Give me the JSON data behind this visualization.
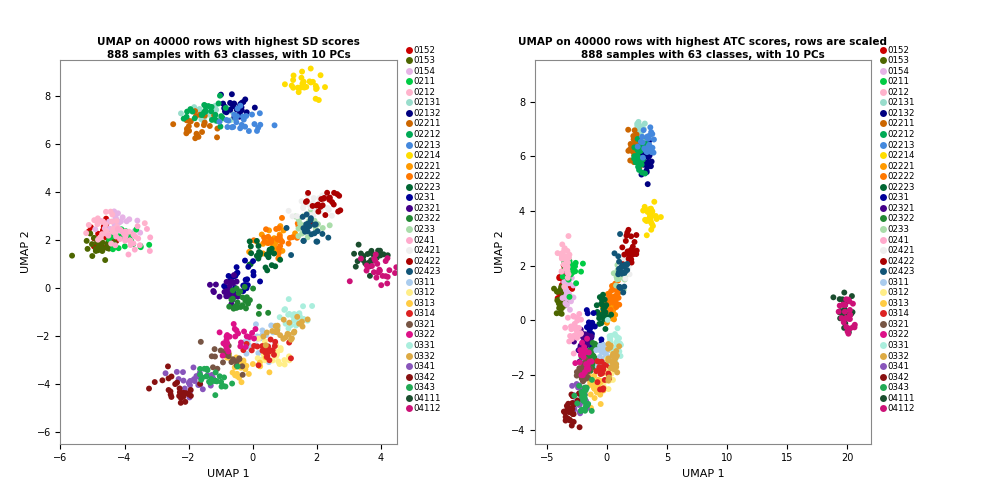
{
  "title1": "UMAP on 40000 rows with highest SD scores\n888 samples with 63 classes, with 10 PCs",
  "title2": "UMAP on 40000 rows with highest ATC scores, rows are scaled\n888 samples with 63 classes, with 10 PCs",
  "xlabel": "UMAP 1",
  "ylabel": "UMAP 2",
  "classes": [
    "0152",
    "0153",
    "0154",
    "0211",
    "0212",
    "02131",
    "02132",
    "02211",
    "02212",
    "02213",
    "02214",
    "02221",
    "02222",
    "02223",
    "0231",
    "02321",
    "02322",
    "0233",
    "0241",
    "02421",
    "02422",
    "02423",
    "0311",
    "0312",
    "0313",
    "0314",
    "0321",
    "0322",
    "0331",
    "0332",
    "0341",
    "0342",
    "0343",
    "04111",
    "04112"
  ],
  "class_colors": {
    "0152": "#cc0000",
    "0153": "#4d6600",
    "0154": "#e6b3e6",
    "0211": "#00cc44",
    "0212": "#ffb3cc",
    "02131": "#99ddcc",
    "02132": "#000080",
    "02211": "#cc6600",
    "02212": "#00aa55",
    "02213": "#4488dd",
    "02214": "#ffdd00",
    "02221": "#ff9900",
    "02222": "#ff7700",
    "02223": "#006633",
    "0231": "#000099",
    "02321": "#440088",
    "02322": "#228833",
    "0233": "#aaddaa",
    "0241": "#ffaacc",
    "02421": "#eeeeee",
    "02422": "#aa0000",
    "02423": "#115577",
    "0311": "#aaccee",
    "0312": "#ffee88",
    "0313": "#ffcc44",
    "0314": "#dd2222",
    "0321": "#775544",
    "0322": "#dd1188",
    "0331": "#aaeedd",
    "0332": "#ddaa44",
    "0341": "#8855bb",
    "0342": "#881111",
    "0343": "#22aa55",
    "04111": "#1a4d2e",
    "04112": "#cc1177"
  },
  "plot1_xlim": [
    -6,
    4.5
  ],
  "plot1_ylim": [
    -6.5,
    9.5
  ],
  "plot1_xticks": [
    -6,
    -4,
    -2,
    0,
    2,
    4
  ],
  "plot1_yticks": [
    -6,
    -4,
    -2,
    0,
    2,
    4,
    6,
    8
  ],
  "plot2_xlim": [
    -6,
    22
  ],
  "plot2_ylim": [
    -4.5,
    9.5
  ],
  "plot2_xticks": [
    -5,
    0,
    5,
    10,
    15,
    20
  ],
  "plot2_yticks": [
    -4,
    -2,
    0,
    2,
    4,
    6,
    8
  ],
  "background_color": "#ffffff",
  "point_size": 18,
  "seed": 42
}
